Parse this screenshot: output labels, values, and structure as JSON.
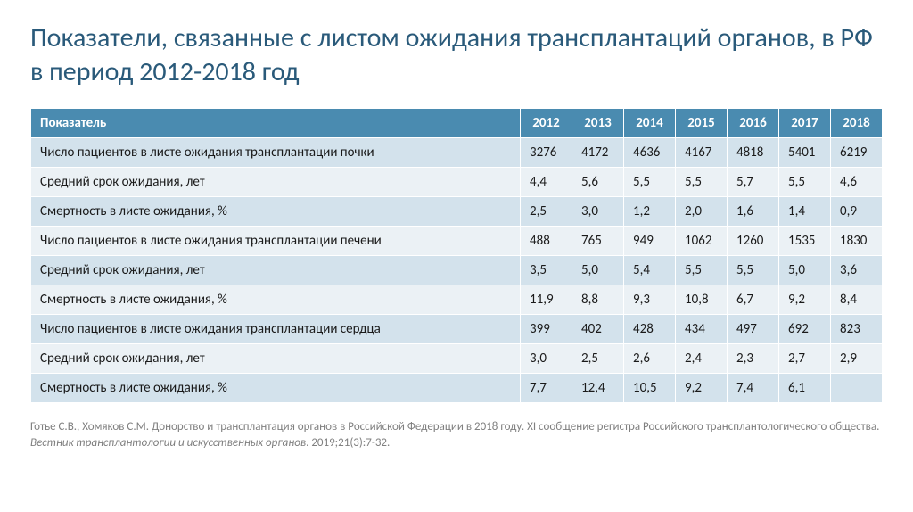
{
  "title": "Показатели, связанные с листом ожидания трансплантаций органов, в РФ в период 2012-2018 год",
  "table": {
    "header_label": "Показатель",
    "years": [
      "2012",
      "2013",
      "2014",
      "2015",
      "2016",
      "2017",
      "2018"
    ],
    "rows": [
      {
        "label": "Число пациентов в листе ожидания трансплантации почки",
        "values": [
          "3276",
          "4172",
          "4636",
          "4167",
          "4818",
          "5401",
          "6219"
        ]
      },
      {
        "label": "Средний срок ожидания, лет",
        "values": [
          "4,4",
          "5,6",
          "5,5",
          "5,5",
          "5,7",
          "5,5",
          "4,6"
        ]
      },
      {
        "label": "Смертность в листе ожидания, %",
        "values": [
          "2,5",
          "3,0",
          "1,2",
          "2,0",
          "1,6",
          "1,4",
          "0,9"
        ]
      },
      {
        "label": "Число пациентов в листе ожидания трансплантации печени",
        "values": [
          "488",
          "765",
          "949",
          "1062",
          "1260",
          "1535",
          "1830"
        ]
      },
      {
        "label": "Средний срок ожидания, лет",
        "values": [
          "3,5",
          "5,0",
          "5,4",
          "5,5",
          "5,5",
          "5,0",
          "3,6"
        ]
      },
      {
        "label": "Смертность в листе ожидания, %",
        "values": [
          "11,9",
          "8,8",
          "9,3",
          "10,8",
          "6,7",
          "9,2",
          "8,4"
        ]
      },
      {
        "label": "Число пациентов в листе ожидания трансплантации сердца",
        "values": [
          "399",
          "402",
          "428",
          "434",
          "497",
          "692",
          "823"
        ]
      },
      {
        "label": "Средний срок ожидания, лет",
        "values": [
          "3,0",
          "2,5",
          "2,6",
          "2,4",
          "2,3",
          "2,7",
          "2,9"
        ]
      },
      {
        "label": "Смертность в листе ожидания, %",
        "values": [
          "7,7",
          "12,4",
          "10,5",
          "9,2",
          "7,4",
          "6,1",
          ""
        ]
      }
    ],
    "colors": {
      "header_bg": "#4a8bb0",
      "header_text": "#ffffff",
      "row_odd_bg": "#d3e2ec",
      "row_even_bg": "#ebf1f5",
      "cell_text": "#1a1a1a",
      "border": "#ffffff"
    },
    "label_fontsize": 15
  },
  "citation": {
    "text_before": "Готье С.В., Хомяков С.М. Донорство и трансплантация органов в Российской Федерации в 2018 году. XI сообщение регистра Российского трансплантологического общества. ",
    "italic": "Вестник трансплантологии и искусственных органов",
    "text_after": ". 2019;21(3):7-32."
  },
  "title_color": "#2a5a7a",
  "title_fontsize": 30,
  "citation_color": "#808080",
  "citation_fontsize": 13
}
